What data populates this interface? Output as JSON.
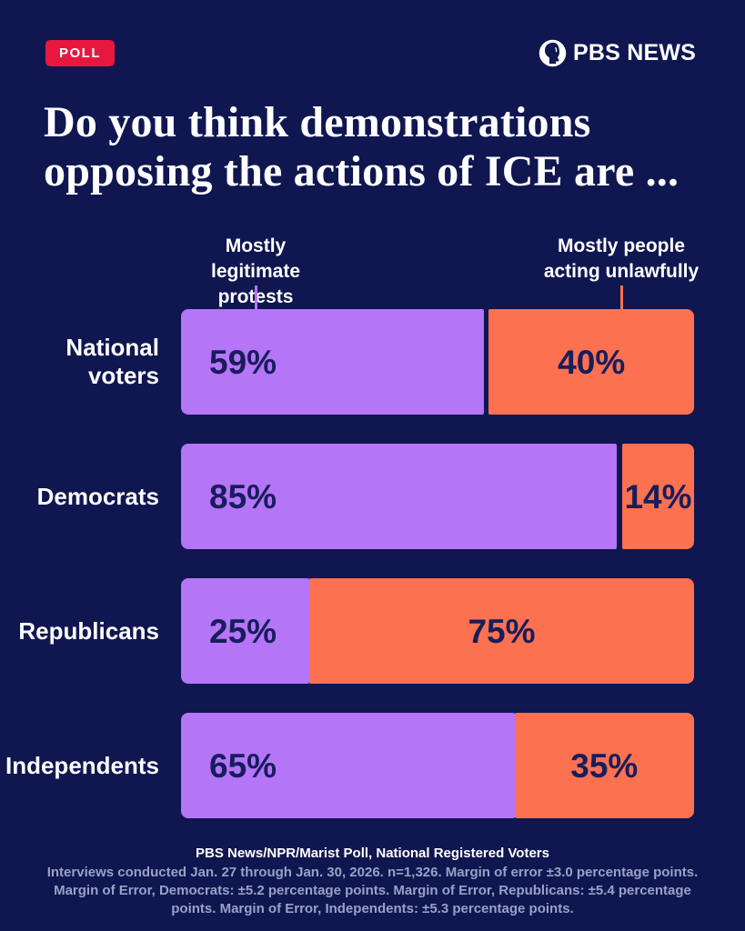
{
  "badge": {
    "label": "POLL"
  },
  "brand": {
    "name": "PBS NEWS",
    "icon": "pbs-head-icon"
  },
  "title": {
    "line1": "Do you think demonstrations",
    "line2": "opposing the actions of ICE are ..."
  },
  "legend": {
    "left": {
      "line1": "Mostly legitimate",
      "line2": "protests"
    },
    "right": {
      "line1": "Mostly people",
      "line2": "acting unlawfully"
    }
  },
  "chart_data": {
    "type": "bar",
    "orientation": "horizontal_stacked",
    "categories": [
      "National voters",
      "Democrats",
      "Republicans",
      "Independents"
    ],
    "series": [
      {
        "name": "Mostly legitimate protests",
        "color": "#b475f7",
        "values": [
          59,
          85,
          25,
          65
        ]
      },
      {
        "name": "Mostly people acting unlawfully",
        "color": "#fc7150",
        "values": [
          40,
          14,
          75,
          35
        ]
      }
    ],
    "value_suffix": "%",
    "xlim": [
      0,
      100
    ],
    "bar_label_color": "#181d5c",
    "legend_position": "top"
  },
  "footer": {
    "source": "PBS News/NPR/Marist Poll, National Registered Voters",
    "notes": [
      "Interviews conducted Jan. 27 through Jan. 30, 2026. n=1,326. Margin of error ±3.0 percentage points.",
      "Margin of Error, Democrats: ±5.2 percentage points. Margin of Error, Republicans: ±5.4 percentage",
      "points. Margin of Error, Independents: ±5.3 percentage points."
    ]
  },
  "colors": {
    "background": "#101650",
    "badge_red": "#e8173f",
    "white": "#ffffff",
    "footer_muted": "#9aa1c6",
    "purple": "#b475f7",
    "orange": "#fc7150",
    "bar_text_navy": "#181d5c"
  }
}
